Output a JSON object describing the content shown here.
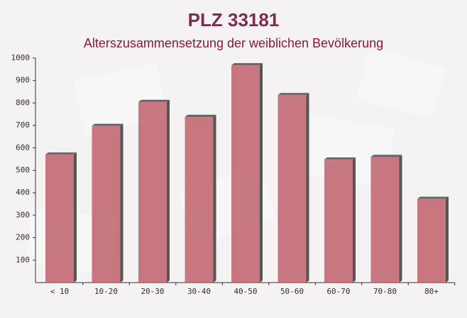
{
  "chart_data": {
    "type": "bar",
    "title": "PLZ 33181",
    "subtitle": "Alterszusammensetzung der weiblichen Bevölkerung",
    "categories": [
      "< 10",
      "10-20",
      "20-30",
      "30-40",
      "40-50",
      "50-60",
      "60-70",
      "70-80",
      "80+"
    ],
    "values": [
      570,
      698,
      805,
      738,
      968,
      835,
      548,
      560,
      373
    ],
    "color": "#c0616b",
    "ylim": [
      0,
      1000
    ],
    "yticks": [
      100,
      200,
      300,
      400,
      500,
      600,
      700,
      800,
      900,
      1000
    ],
    "grid": false
  }
}
